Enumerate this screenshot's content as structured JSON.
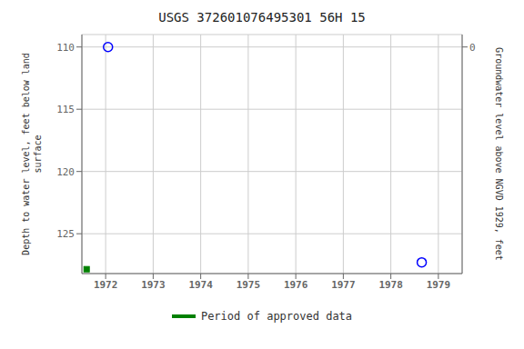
{
  "chart_data": {
    "type": "scatter",
    "title": "USGS 372601076495301 56H 15",
    "y_label": "Depth to water level, feet below land\n surface",
    "y2_label": "Groundwater level above NGVD 1929, feet",
    "series": [
      {
        "x": [
          1972.05,
          1978.65
        ],
        "values": [
          110.0,
          127.3
        ],
        "color": "blue",
        "marker": "circle"
      },
      {
        "name": "Period of approved data",
        "x": [
          1971.6
        ],
        "values": [
          127.85
        ],
        "color": "#008000",
        "marker": "square"
      }
    ],
    "xlim": [
      1971.5,
      1979.5
    ],
    "xticks": [
      1972,
      1973,
      1974,
      1975,
      1976,
      1977,
      1978,
      1979
    ],
    "ylim": [
      128.2,
      109.0
    ],
    "yticks": [
      110,
      115,
      120,
      125
    ],
    "y2lim": [
      18.2,
      -1.0
    ],
    "y2ticks": [
      0
    ],
    "grid": true,
    "legend": "bottom"
  }
}
